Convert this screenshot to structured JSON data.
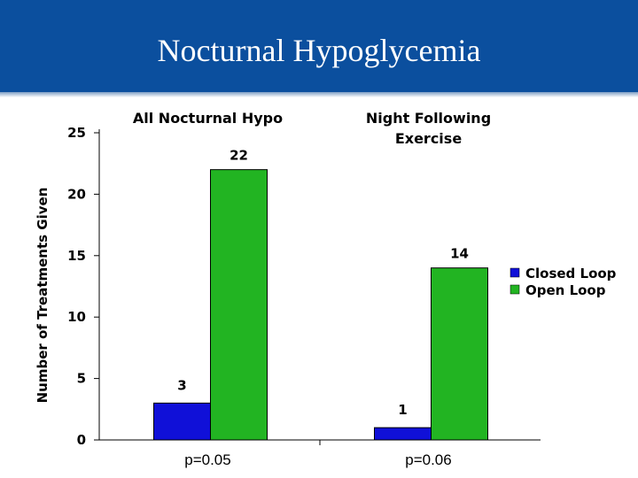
{
  "slide": {
    "title": "Nocturnal Hypoglycemia"
  },
  "colors": {
    "banner": "#0b4f9e",
    "closed_loop": "#1010d8",
    "open_loop": "#22b422"
  },
  "chart_data": {
    "type": "bar",
    "categories": [
      "All Nocturnal Hypo",
      "Night Following Exercise"
    ],
    "category_title_lines": [
      [
        "All Nocturnal Hypo"
      ],
      [
        "Night Following",
        "Exercise"
      ]
    ],
    "series": [
      {
        "name": "Closed Loop",
        "values": [
          3,
          1
        ],
        "color": "#1010d8"
      },
      {
        "name": "Open Loop",
        "values": [
          22,
          14
        ],
        "color": "#22b422"
      }
    ],
    "annotations": [
      "p=0.05",
      "p=0.06"
    ],
    "xlabel": "",
    "ylabel": "Number of Treatments Given",
    "ylim": [
      0,
      25
    ],
    "yticks": [
      0,
      5,
      10,
      15,
      20,
      25
    ],
    "legend": "right",
    "grid": false
  }
}
